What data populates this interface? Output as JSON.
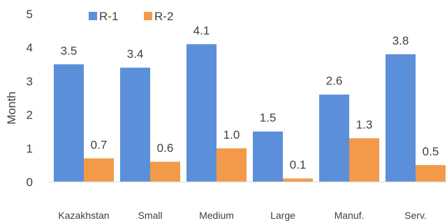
{
  "chart_data": {
    "type": "bar",
    "ylabel": "Month",
    "xlabel": "",
    "ylim": [
      0,
      5
    ],
    "yticks": [
      "0",
      "1",
      "2",
      "3",
      "4",
      "5"
    ],
    "categories": [
      "Kazakhstan",
      "Small",
      "Medium",
      "Large",
      "Manuf.",
      "Serv."
    ],
    "series": [
      {
        "name": "R-1",
        "color": "#5B8FD9",
        "values": [
          3.5,
          3.4,
          4.1,
          1.5,
          2.6,
          3.8
        ],
        "labels": [
          "3.5",
          "3.4",
          "4.1",
          "1.5",
          "2.6",
          "3.8"
        ]
      },
      {
        "name": "R-2",
        "color": "#F39A4A",
        "values": [
          0.7,
          0.6,
          1.0,
          0.1,
          1.3,
          0.5
        ],
        "labels": [
          "0.7",
          "0.6",
          "1.0",
          "0.1",
          "1.3",
          "0.5"
        ]
      }
    ],
    "legend": "top-left",
    "grid": false
  }
}
